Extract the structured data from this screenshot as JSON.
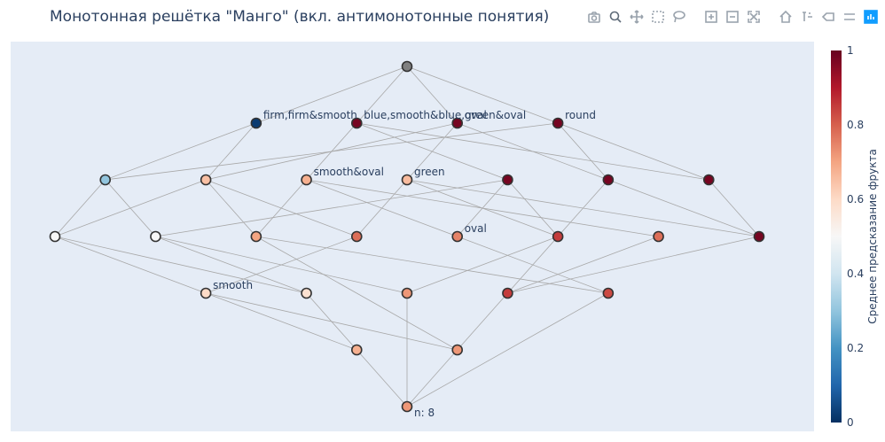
{
  "title": "Монотонная решётка \"Манго\" (вкл. антимонотонные понятия)",
  "toolbar": [
    {
      "name": "camera-icon"
    },
    {
      "name": "zoom-icon"
    },
    {
      "name": "pan-icon"
    },
    {
      "name": "box-select-icon"
    },
    {
      "name": "lasso-select-icon"
    },
    {
      "name": "zoom-in-icon"
    },
    {
      "name": "zoom-out-icon"
    },
    {
      "name": "autoscale-icon"
    },
    {
      "name": "home-icon"
    },
    {
      "name": "spike-lines-icon"
    },
    {
      "name": "hover-closest-icon"
    },
    {
      "name": "hover-compare-icon"
    },
    {
      "name": "plotly-logo-icon"
    }
  ],
  "chart_data": {
    "type": "scatter",
    "subtype": "concept-lattice",
    "colorbar": {
      "title": "Среднее предсказание фрукта",
      "range": [
        0,
        1
      ],
      "ticks": [
        "0",
        "0.2",
        "0.4",
        "0.6",
        "0.8",
        "1"
      ],
      "colorscale": "RdBu reversed"
    },
    "nodes": [
      {
        "id": "top",
        "level": 0,
        "pos": 3.5,
        "value": null,
        "label": ""
      },
      {
        "id": "a1",
        "level": 1,
        "pos": 2.0,
        "value": 0.02,
        "label": "firm,firm&smooth"
      },
      {
        "id": "a2",
        "level": 1,
        "pos": 3.0,
        "value": 0.98,
        "label": "blue,smooth&blue,green&oval"
      },
      {
        "id": "a3",
        "level": 1,
        "pos": 4.0,
        "value": 0.98,
        "label": "oval"
      },
      {
        "id": "a4",
        "level": 1,
        "pos": 5.0,
        "value": 0.98,
        "label": "round"
      },
      {
        "id": "b1",
        "level": 2,
        "pos": 0.5,
        "value": 0.3,
        "label": ""
      },
      {
        "id": "b2",
        "level": 2,
        "pos": 1.5,
        "value": 0.65,
        "label": ""
      },
      {
        "id": "b3",
        "level": 2,
        "pos": 2.5,
        "value": 0.68,
        "label": "smooth&oval"
      },
      {
        "id": "b4",
        "level": 2,
        "pos": 3.5,
        "value": 0.66,
        "label": "green"
      },
      {
        "id": "b5",
        "level": 2,
        "pos": 4.5,
        "value": 0.98,
        "label": ""
      },
      {
        "id": "b6",
        "level": 2,
        "pos": 5.5,
        "value": 0.98,
        "label": ""
      },
      {
        "id": "b7",
        "level": 2,
        "pos": 6.5,
        "value": 0.98,
        "label": ""
      },
      {
        "id": "c1",
        "level": 3,
        "pos": 0.0,
        "value": 0.5,
        "label": ""
      },
      {
        "id": "c2",
        "level": 3,
        "pos": 1.0,
        "value": 0.5,
        "label": ""
      },
      {
        "id": "c3",
        "level": 3,
        "pos": 2.0,
        "value": 0.7,
        "label": ""
      },
      {
        "id": "c4",
        "level": 3,
        "pos": 3.0,
        "value": 0.78,
        "label": ""
      },
      {
        "id": "c5",
        "level": 3,
        "pos": 4.0,
        "value": 0.75,
        "label": "oval"
      },
      {
        "id": "c6",
        "level": 3,
        "pos": 5.0,
        "value": 0.85,
        "label": ""
      },
      {
        "id": "c7",
        "level": 3,
        "pos": 6.0,
        "value": 0.78,
        "label": ""
      },
      {
        "id": "c8",
        "level": 3,
        "pos": 7.0,
        "value": 0.98,
        "label": ""
      },
      {
        "id": "d1",
        "level": 4,
        "pos": 1.5,
        "value": 0.6,
        "label": "smooth"
      },
      {
        "id": "d2",
        "level": 4,
        "pos": 2.5,
        "value": 0.58,
        "label": ""
      },
      {
        "id": "d3",
        "level": 4,
        "pos": 3.5,
        "value": 0.72,
        "label": ""
      },
      {
        "id": "d4",
        "level": 4,
        "pos": 4.5,
        "value": 0.85,
        "label": ""
      },
      {
        "id": "d5",
        "level": 4,
        "pos": 5.5,
        "value": 0.83,
        "label": ""
      },
      {
        "id": "e1",
        "level": 5,
        "pos": 3.0,
        "value": 0.68,
        "label": ""
      },
      {
        "id": "e2",
        "level": 5,
        "pos": 4.0,
        "value": 0.72,
        "label": ""
      },
      {
        "id": "bottom",
        "level": 6,
        "pos": 3.5,
        "value": 0.72,
        "label": "n: 8"
      }
    ],
    "edges": [
      [
        "top",
        "a1"
      ],
      [
        "top",
        "a2"
      ],
      [
        "top",
        "a3"
      ],
      [
        "top",
        "a4"
      ],
      [
        "a1",
        "b1"
      ],
      [
        "a1",
        "b2"
      ],
      [
        "a2",
        "b3"
      ],
      [
        "a2",
        "b5"
      ],
      [
        "a2",
        "b7"
      ],
      [
        "a3",
        "b4"
      ],
      [
        "a3",
        "b6"
      ],
      [
        "a3",
        "b2"
      ],
      [
        "a4",
        "b1"
      ],
      [
        "a4",
        "b6"
      ],
      [
        "a4",
        "b7"
      ],
      [
        "b1",
        "c1"
      ],
      [
        "b1",
        "c2"
      ],
      [
        "b2",
        "c1"
      ],
      [
        "b2",
        "c3"
      ],
      [
        "b2",
        "c4"
      ],
      [
        "b3",
        "c3"
      ],
      [
        "b3",
        "c5"
      ],
      [
        "b3",
        "c7"
      ],
      [
        "b4",
        "c4"
      ],
      [
        "b4",
        "c6"
      ],
      [
        "b4",
        "c8"
      ],
      [
        "b5",
        "c2"
      ],
      [
        "b5",
        "c5"
      ],
      [
        "b5",
        "c6"
      ],
      [
        "b6",
        "c8"
      ],
      [
        "b6",
        "d4"
      ],
      [
        "b7",
        "c8"
      ],
      [
        "c1",
        "d1"
      ],
      [
        "c1",
        "d2"
      ],
      [
        "c2",
        "d2"
      ],
      [
        "c2",
        "d3"
      ],
      [
        "c3",
        "d5"
      ],
      [
        "c4",
        "d1"
      ],
      [
        "c5",
        "d5"
      ],
      [
        "c6",
        "d3"
      ],
      [
        "c7",
        "d4"
      ],
      [
        "c8",
        "d4"
      ],
      [
        "d1",
        "e1"
      ],
      [
        "d1",
        "e2"
      ],
      [
        "d2",
        "e1"
      ],
      [
        "d3",
        "bottom"
      ],
      [
        "d4",
        "e2"
      ],
      [
        "d5",
        "bottom"
      ],
      [
        "e1",
        "bottom"
      ],
      [
        "e2",
        "bottom"
      ],
      [
        "c3",
        "e2"
      ]
    ]
  }
}
